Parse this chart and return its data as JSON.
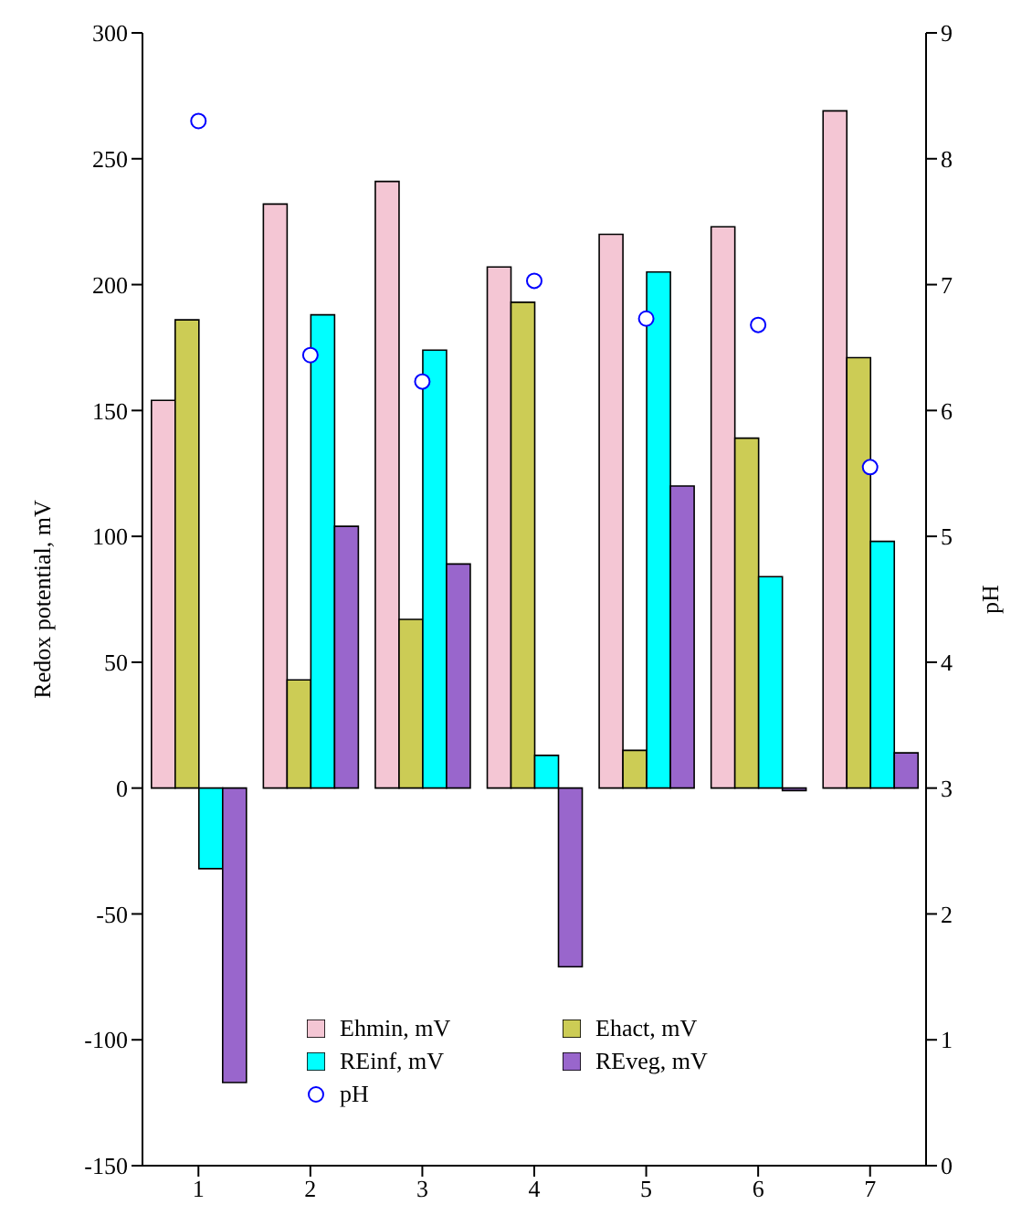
{
  "chart_data": {
    "type": "bar",
    "ylabel": "Redox potential, mV",
    "y2label": "pH",
    "categories": [
      "1",
      "2",
      "3",
      "4",
      "5",
      "6",
      "7"
    ],
    "series": [
      {
        "name": "Ehmin, mV",
        "color": "#f4c6d4",
        "values": [
          154,
          232,
          241,
          207,
          220,
          223,
          269
        ]
      },
      {
        "name": "Ehact, mV",
        "color": "#cccc55",
        "values": [
          186,
          43,
          67,
          193,
          15,
          139,
          171
        ]
      },
      {
        "name": "REinf, mV",
        "color": "#00ffff",
        "values": [
          -32,
          188,
          174,
          13,
          205,
          84,
          98
        ]
      },
      {
        "name": "REveg, mV",
        "color": "#9966cc",
        "values": [
          -117,
          104,
          89,
          -71,
          120,
          -1,
          14
        ]
      },
      {
        "name": "pH",
        "type": "scatter",
        "axis": "y2",
        "color": "#ffffff",
        "marker": "circle",
        "values": [
          8.3,
          6.44,
          6.23,
          7.03,
          6.73,
          6.68,
          5.55
        ]
      }
    ],
    "ylim": [
      -150,
      300
    ],
    "yticks": [
      -150,
      -100,
      -50,
      0,
      50,
      100,
      150,
      200,
      250,
      300
    ],
    "y2lim": [
      0,
      9
    ],
    "y2ticks": [
      0,
      1,
      2,
      3,
      4,
      5,
      6,
      7,
      8,
      9
    ],
    "legend": "bottom",
    "grid": false
  }
}
